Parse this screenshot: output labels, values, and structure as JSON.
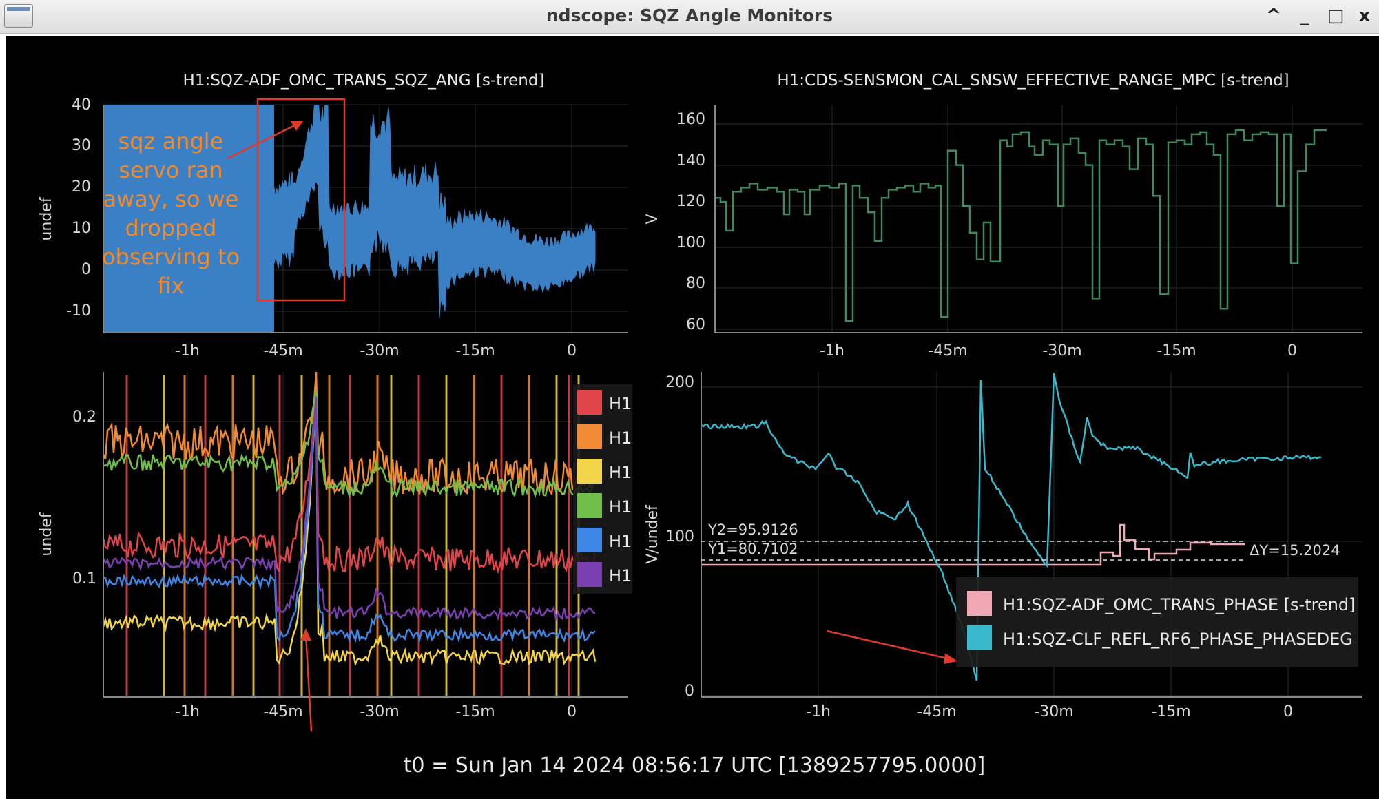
{
  "window": {
    "title": "ndscope: SQZ Angle Monitors",
    "controls": [
      "^",
      "_",
      "□",
      "x"
    ]
  },
  "t0_label": "t0 = Sun Jan 14 2024 08:56:17 UTC [1389257795.0000]",
  "time_ticks": [
    "-1h",
    "-45m",
    "-30m",
    "-15m",
    "0"
  ],
  "plots": {
    "top_left": {
      "title": "H1:SQZ-ADF_OMC_TRANS_SQZ_ANG [s-trend]",
      "ylabel": "undef",
      "yticks": [
        "40",
        "30",
        "20",
        "10",
        "0",
        "-10"
      ],
      "annotation": [
        "sqz angle",
        "servo ran",
        "away, so we",
        "dropped",
        "observing to",
        "fix"
      ],
      "annotation_color": "#f28a2a",
      "trace_color": "#3b7fc4"
    },
    "top_right": {
      "title": "H1:CDS-SENSMON_CAL_SNSW_EFFECTIVE_RANGE_MPC [s-trend]",
      "ylabel": "V",
      "yticks": [
        "160",
        "140",
        "120",
        "100",
        "80",
        "60"
      ],
      "trace_color": "#3e8a5e"
    },
    "bottom_left": {
      "ylabel": "undef",
      "yticks": [
        "0.2",
        "0.1"
      ],
      "legend": [
        {
          "label": "H1",
          "color": "#e0454a"
        },
        {
          "label": "H1",
          "color": "#f08a34"
        },
        {
          "label": "H1",
          "color": "#f2d54a"
        },
        {
          "label": "H1",
          "color": "#6fbf4a"
        },
        {
          "label": "H1",
          "color": "#3e86e6"
        },
        {
          "label": "H1",
          "color": "#7a3fb0"
        }
      ]
    },
    "bottom_right": {
      "ylabel": "V/undef",
      "yticks": [
        "200",
        "100",
        "0"
      ],
      "cursor_y2": "Y2=95.9126",
      "cursor_y1": "Y1=80.7102",
      "cursor_dy": "ΔY=15.2024",
      "legend": [
        {
          "label": "H1:SQZ-ADF_OMC_TRANS_PHASE [s-trend]",
          "color": "#f0a8b4"
        },
        {
          "label": "H1:SQZ-CLF_REFL_RF6_PHASE_PHASEDEG",
          "color": "#3ab8cc"
        }
      ]
    }
  }
}
